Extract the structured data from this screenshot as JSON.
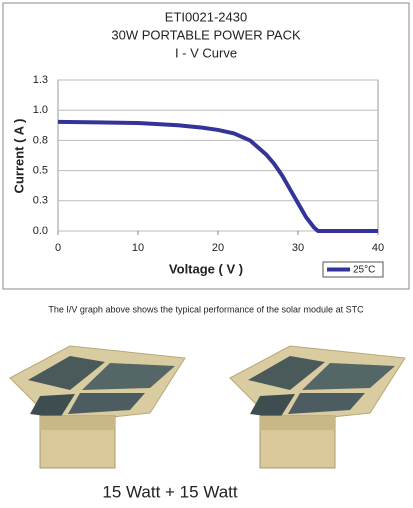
{
  "chart_data": {
    "type": "line",
    "title": "ETI0021-2430",
    "subtitle": "30W PORTABLE POWER PACK",
    "subtitle2": "I - V Curve",
    "x_label": "Voltage ( V )",
    "y_label": "Current ( A )",
    "x": [
      0,
      5,
      10,
      15,
      18,
      20,
      22,
      24,
      26,
      27,
      28,
      29,
      30,
      31,
      32,
      32.5,
      35,
      40
    ],
    "series": [
      {
        "name": "25°C",
        "color": "#333399",
        "values": [
          0.94,
          0.935,
          0.93,
          0.91,
          0.89,
          0.87,
          0.84,
          0.78,
          0.66,
          0.58,
          0.48,
          0.36,
          0.24,
          0.12,
          0.03,
          0,
          0,
          0
        ]
      }
    ],
    "xlim": [
      0,
      40
    ],
    "xticks": [
      0,
      10,
      20,
      30,
      40
    ],
    "ylim": [
      0,
      1.3
    ],
    "yticks": [
      {
        "value": 0,
        "label": "0.0"
      },
      {
        "value": 0.26,
        "label": "0.3"
      },
      {
        "value": 0.52,
        "label": "0.5"
      },
      {
        "value": 0.78,
        "label": "0.8"
      },
      {
        "value": 1.04,
        "label": "1.0"
      },
      {
        "value": 1.3,
        "label": "1.3"
      }
    ],
    "grid": true,
    "legend": "lower right"
  },
  "caption": "The I/V graph above shows the typical performance of the solar module at STC",
  "footer": "15 Watt + 15 Watt"
}
